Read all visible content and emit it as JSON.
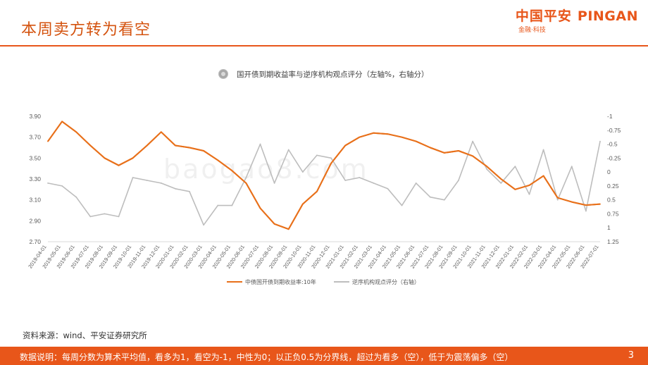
{
  "header": {
    "title": "本周卖方转为看空",
    "brand_cn": "中国平安",
    "brand_en": "PINGAN",
    "brand_sub": "金融·科技"
  },
  "watermark": "baogao8.com",
  "chart_data": {
    "type": "line",
    "title": "国开债到期收益率与逆序机构观点评分（左轴%，右轴分）",
    "x_labels": [
      "2019-04-01",
      "2019-05-01",
      "2019-06-01",
      "2019-07-01",
      "2019-08-01",
      "2019-09-01",
      "2019-10-01",
      "2019-11-01",
      "2019-12-01",
      "2020-01-01",
      "2020-02-01",
      "2020-03-01",
      "2020-04-01",
      "2020-05-01",
      "2020-06-01",
      "2020-07-01",
      "2020-08-01",
      "2020-09-01",
      "2020-10-01",
      "2020-11-01",
      "2020-12-01",
      "2021-01-01",
      "2021-02-01",
      "2021-03-01",
      "2021-04-01",
      "2021-05-01",
      "2021-06-01",
      "2021-07-01",
      "2021-08-01",
      "2021-09-01",
      "2021-10-01",
      "2021-11-01",
      "2021-12-01",
      "2022-01-01",
      "2022-02-01",
      "2022-03-01",
      "2022-04-01",
      "2022-05-01",
      "2022-06-01",
      "2022-07-01"
    ],
    "y_left": {
      "ticks": [
        "3.90",
        "3.70",
        "3.50",
        "3.30",
        "3.10",
        "2.90",
        "2.70"
      ],
      "min": 2.7,
      "max": 3.9
    },
    "y_right": {
      "ticks": [
        "-1",
        "-0.75",
        "-0.5",
        "-0.25",
        "0",
        "0.25",
        "0.5",
        "0.75",
        "1",
        "1.25"
      ],
      "min": -1,
      "max": 1.25,
      "inverted": true
    },
    "series": [
      {
        "name": "中债国开债到期收益率:10年",
        "axis": "left",
        "color": "#e8701a",
        "values": [
          3.66,
          3.85,
          3.75,
          3.62,
          3.5,
          3.43,
          3.5,
          3.62,
          3.75,
          3.62,
          3.6,
          3.57,
          3.48,
          3.38,
          3.26,
          3.02,
          2.87,
          2.82,
          3.06,
          3.18,
          3.45,
          3.62,
          3.7,
          3.74,
          3.73,
          3.7,
          3.66,
          3.6,
          3.55,
          3.57,
          3.52,
          3.42,
          3.3,
          3.2,
          3.24,
          3.33,
          3.12,
          3.08,
          3.05,
          3.06
        ]
      },
      {
        "name": "逆序机构观点评分（右轴）",
        "axis": "right",
        "color": "#bdbdbd",
        "values": [
          0.2,
          0.25,
          0.45,
          0.8,
          0.75,
          0.8,
          0.1,
          0.15,
          0.2,
          0.3,
          0.35,
          0.95,
          0.6,
          0.6,
          0.1,
          -0.5,
          0.2,
          -0.4,
          0.0,
          -0.3,
          -0.25,
          0.15,
          0.1,
          0.2,
          0.3,
          0.6,
          0.2,
          0.45,
          0.5,
          0.15,
          -0.55,
          -0.05,
          0.2,
          -0.1,
          0.4,
          -0.4,
          0.5,
          -0.1,
          0.7,
          -0.55
        ]
      }
    ],
    "legend_position": "bottom",
    "grid": false
  },
  "footer": {
    "source": "资料来源：wind、平安证券研究所",
    "note": "数据说明：每周分数为算术平均值，看多为1，看空为-1，中性为0；以正负0.5为分界线，超过为看多（空），低于为震荡偏多（空）",
    "page_number": "3"
  },
  "colors": {
    "accent": "#e8561a",
    "bond_line": "#e8701a",
    "score_line": "#bdbdbd"
  }
}
